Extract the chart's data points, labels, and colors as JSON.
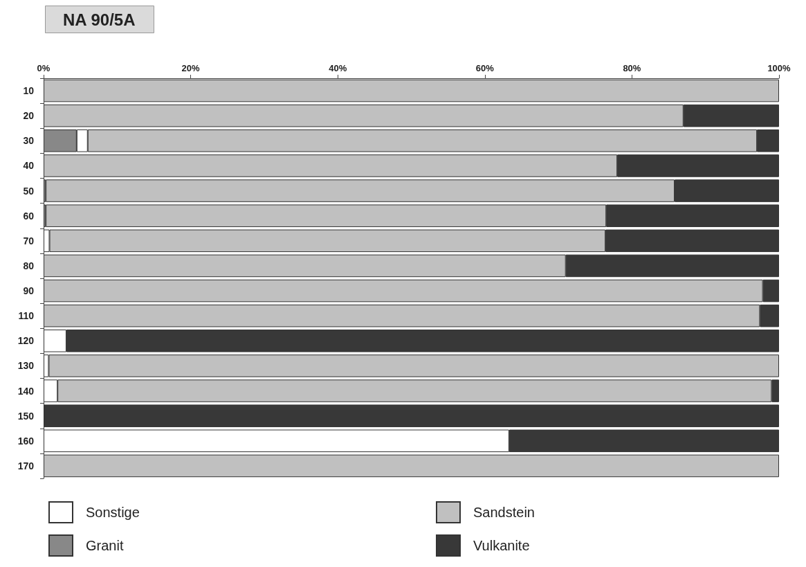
{
  "chart_data": {
    "type": "bar",
    "orientation": "horizontal",
    "stacked": true,
    "title": "NA 90/5A",
    "categories": [
      "10",
      "20",
      "30",
      "40",
      "50",
      "60",
      "70",
      "80",
      "90",
      "110",
      "120",
      "130",
      "140",
      "150",
      "160",
      "170"
    ],
    "series": [
      {
        "name": "Granit",
        "color": "#888888",
        "values": [
          null,
          null,
          4.5,
          null,
          0.3,
          0.3,
          null,
          null,
          null,
          null,
          null,
          null,
          null,
          null,
          null,
          null
        ]
      },
      {
        "name": "Sonstige",
        "color": "#ffffff",
        "values": [
          null,
          null,
          1.5,
          null,
          null,
          null,
          0.8,
          null,
          null,
          null,
          3.1,
          0.7,
          1.9,
          null,
          63.3,
          null
        ]
      },
      {
        "name": "Sandstein",
        "color": "#c0c0c0",
        "values": [
          100,
          87,
          91,
          78,
          85.5,
          76.2,
          75.6,
          71,
          97.8,
          97.4,
          null,
          99.3,
          97.1,
          null,
          null,
          100
        ]
      },
      {
        "name": "Vulkanite",
        "color": "#383838",
        "values": [
          null,
          13,
          3,
          22,
          14.2,
          23.5,
          23.6,
          29,
          2.2,
          2.6,
          96.9,
          null,
          1,
          100,
          36.7,
          null
        ]
      }
    ],
    "xlim": [
      0,
      100
    ],
    "xticks": [
      {
        "value": 0,
        "label": "0%"
      },
      {
        "value": 20,
        "label": "20%"
      },
      {
        "value": 40,
        "label": "40%"
      },
      {
        "value": 60,
        "label": "60%"
      },
      {
        "value": 80,
        "label": "80%"
      },
      {
        "value": 100,
        "label": "100%"
      }
    ],
    "grid": false,
    "legend": "bottom"
  }
}
